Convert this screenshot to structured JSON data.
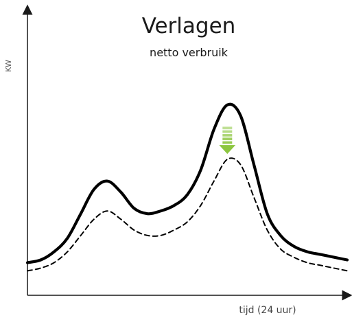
{
  "chart_data": {
    "type": "line",
    "title": "Verlagen",
    "subtitle": "netto verbruik",
    "xlabel": "tijd (24 uur)",
    "ylabel": "KW",
    "xlim": [
      0,
      24
    ],
    "ylim": [
      0,
      10
    ],
    "grid": false,
    "legend": "none",
    "series": [
      {
        "style": "solid",
        "color": "#000000",
        "x": [
          0,
          1,
          2,
          3,
          4,
          5,
          6,
          7,
          8,
          9,
          10,
          11,
          12,
          13,
          14,
          15,
          16,
          17,
          18,
          19,
          20,
          21,
          22,
          23,
          24
        ],
        "y": [
          1.2,
          1.3,
          1.6,
          2.1,
          3.0,
          3.9,
          4.2,
          3.8,
          3.2,
          3.0,
          3.1,
          3.3,
          3.7,
          4.6,
          6.1,
          7.0,
          6.6,
          4.8,
          3.0,
          2.2,
          1.8,
          1.6,
          1.5,
          1.4,
          1.3
        ]
      },
      {
        "style": "dashed",
        "color": "#000000",
        "x": [
          0,
          1,
          2,
          3,
          4,
          5,
          6,
          7,
          8,
          9,
          10,
          11,
          12,
          13,
          14,
          15,
          16,
          17,
          18,
          19,
          20,
          21,
          22,
          23,
          24
        ],
        "y": [
          0.9,
          1.0,
          1.2,
          1.6,
          2.2,
          2.8,
          3.1,
          2.8,
          2.4,
          2.2,
          2.2,
          2.4,
          2.7,
          3.3,
          4.2,
          5.0,
          4.8,
          3.6,
          2.4,
          1.7,
          1.4,
          1.2,
          1.1,
          1.0,
          0.9
        ]
      }
    ],
    "annotations": [
      {
        "type": "arrow-down",
        "x": 15.0,
        "y_from": 6.2,
        "y_to": 5.2,
        "color": "#8cc63f"
      }
    ]
  }
}
